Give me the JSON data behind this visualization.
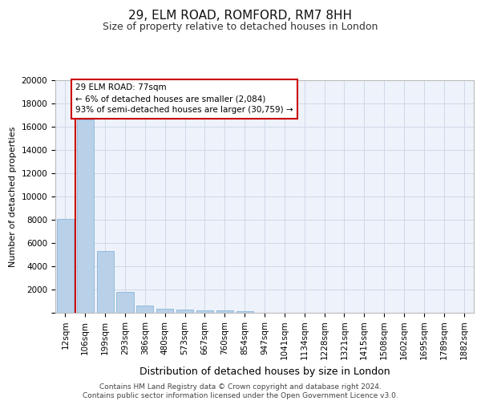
{
  "title_line1": "29, ELM ROAD, ROMFORD, RM7 8HH",
  "title_line2": "Size of property relative to detached houses in London",
  "xlabel": "Distribution of detached houses by size in London",
  "ylabel": "Number of detached properties",
  "categories": [
    "12sqm",
    "106sqm",
    "199sqm",
    "293sqm",
    "386sqm",
    "480sqm",
    "573sqm",
    "667sqm",
    "760sqm",
    "854sqm",
    "947sqm",
    "1041sqm",
    "1134sqm",
    "1228sqm",
    "1321sqm",
    "1415sqm",
    "1508sqm",
    "1602sqm",
    "1695sqm",
    "1789sqm",
    "1882sqm"
  ],
  "values": [
    8100,
    16600,
    5300,
    1800,
    650,
    350,
    270,
    220,
    200,
    170,
    0,
    0,
    0,
    0,
    0,
    0,
    0,
    0,
    0,
    0,
    0
  ],
  "bar_color": "#b8d0e8",
  "bar_edge_color": "#7aafd4",
  "highlight_color": "#cc0000",
  "ylim": [
    0,
    20000
  ],
  "yticks": [
    0,
    2000,
    4000,
    6000,
    8000,
    10000,
    12000,
    14000,
    16000,
    18000,
    20000
  ],
  "annotation_text": "29 ELM ROAD: 77sqm\n← 6% of detached houses are smaller (2,084)\n93% of semi-detached houses are larger (30,759) →",
  "annotation_box_color": "#ffffff",
  "annotation_box_edge_color": "#cc0000",
  "grid_color": "#d0d8e8",
  "bg_color": "#eef2fa",
  "footer_line1": "Contains HM Land Registry data © Crown copyright and database right 2024.",
  "footer_line2": "Contains public sector information licensed under the Open Government Licence v3.0.",
  "title_fontsize": 11,
  "subtitle_fontsize": 9,
  "ylabel_fontsize": 8,
  "xlabel_fontsize": 9,
  "tick_fontsize": 7.5,
  "footer_fontsize": 6.5
}
